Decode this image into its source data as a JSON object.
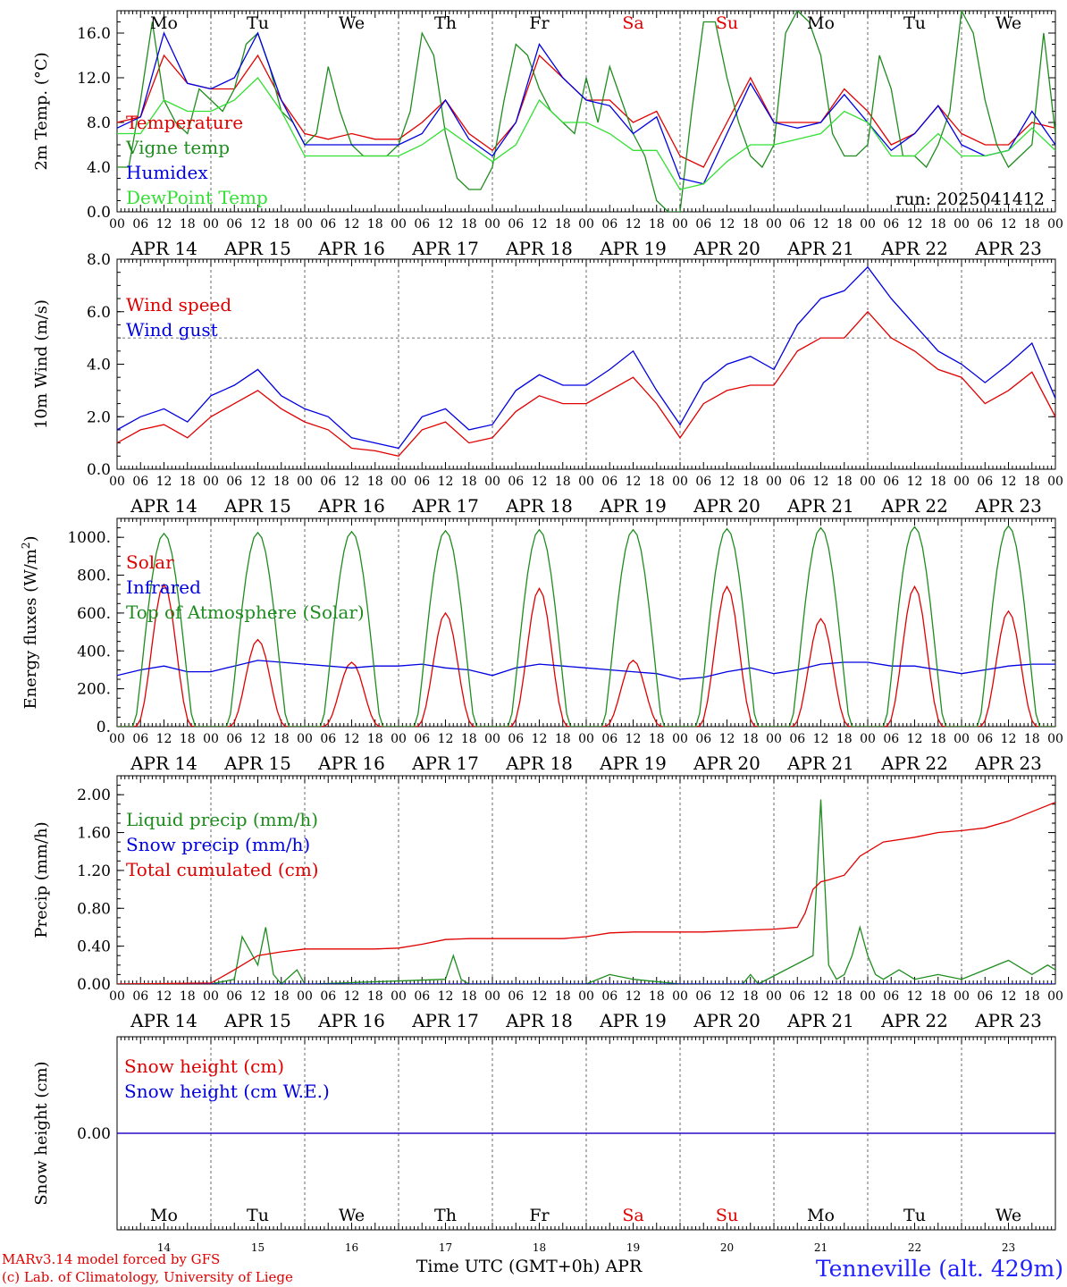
{
  "days": [
    "APR 14",
    "APR 15",
    "APR 16",
    "APR 17",
    "APR 18",
    "APR 19",
    "APR 20",
    "APR 21",
    "APR 22",
    "APR 23"
  ],
  "hour_ticks": [
    "00",
    "06",
    "12",
    "18"
  ],
  "hour_end": "00",
  "weekdays": [
    "Mo",
    "Tu",
    "We",
    "Th",
    "Fr",
    "Sa",
    "Su",
    "Mo",
    "Tu",
    "We"
  ],
  "weekday_colors": [
    "#000000",
    "#000000",
    "#000000",
    "#000000",
    "#000000",
    "#e00000",
    "#e00000",
    "#000000",
    "#000000",
    "#000000"
  ],
  "day_numbers": [
    "14",
    "15",
    "16",
    "17",
    "18",
    "19",
    "20",
    "21",
    "22",
    "23"
  ],
  "x_title": "Time UTC (GMT+0h) APR",
  "footer": {
    "line1": "MARv3.14 model forced by GFS",
    "line2": "(c) Lab. of Climatology, University of Liege",
    "station": "Tenneville (alt. 429m)"
  },
  "chart_data": [
    {
      "type": "line",
      "ylabel": "2m Temp. (°C)",
      "ylim": [
        0,
        18
      ],
      "yticks": [
        "0.0",
        "4.0",
        "8.0",
        "12.0",
        "16.0"
      ],
      "annotation": "run: 2025041412",
      "series": [
        {
          "name": "Temperature",
          "color": "#e00000",
          "x": [
            0,
            6,
            12,
            18,
            24,
            30,
            36,
            42,
            48,
            54,
            60,
            66,
            72,
            78,
            84,
            90,
            96,
            102,
            108,
            114,
            120,
            126,
            132,
            138,
            144,
            150,
            156,
            162,
            168,
            174,
            180,
            186,
            192,
            198,
            204,
            210,
            216,
            222,
            228,
            234,
            240
          ],
          "values": [
            8,
            8.5,
            14,
            11.5,
            11,
            11,
            14,
            10,
            7,
            6.5,
            7,
            6.5,
            6.5,
            8,
            10,
            7,
            5.5,
            8,
            14,
            12,
            10,
            10,
            8,
            9,
            5,
            4,
            8,
            12,
            8,
            8,
            8,
            11,
            9,
            6,
            7,
            9.5,
            7,
            6,
            6,
            8,
            7.5
          ]
        },
        {
          "name": "Vigne temp",
          "color": "#1e8c1e",
          "x": [
            0,
            3,
            6,
            9,
            12,
            15,
            18,
            21,
            24,
            27,
            30,
            33,
            36,
            39,
            42,
            45,
            48,
            51,
            54,
            57,
            60,
            63,
            66,
            69,
            72,
            75,
            78,
            81,
            84,
            87,
            90,
            93,
            96,
            99,
            102,
            105,
            108,
            111,
            114,
            117,
            120,
            123,
            126,
            129,
            132,
            135,
            138,
            141,
            144,
            147,
            150,
            153,
            156,
            159,
            162,
            165,
            168,
            171,
            174,
            177,
            180,
            183,
            186,
            189,
            192,
            195,
            198,
            201,
            204,
            207,
            210,
            213,
            216,
            219,
            222,
            225,
            228,
            231,
            234,
            237,
            240
          ],
          "values": [
            4,
            4,
            10,
            17,
            10,
            8,
            7,
            11,
            10,
            9,
            11,
            15,
            16,
            13,
            9,
            8,
            6,
            7,
            13,
            9,
            6,
            5,
            5,
            5,
            6,
            9,
            16,
            14,
            7,
            3,
            2,
            2,
            4,
            10,
            15,
            14,
            11,
            9,
            8,
            7,
            12,
            8,
            13,
            10,
            7,
            5,
            1,
            0,
            0,
            9,
            17,
            17,
            12,
            8,
            5,
            4,
            6,
            16,
            18,
            17,
            14,
            7,
            5,
            5,
            6,
            14,
            11,
            5,
            5,
            4,
            6,
            9,
            18,
            16,
            10,
            6,
            4,
            5,
            6,
            16,
            7
          ]
        },
        {
          "name": "Humidex",
          "color": "#0000e0",
          "x": [
            0,
            6,
            12,
            18,
            24,
            30,
            36,
            42,
            48,
            54,
            60,
            66,
            72,
            78,
            84,
            90,
            96,
            102,
            108,
            114,
            120,
            126,
            132,
            138,
            144,
            150,
            156,
            162,
            168,
            174,
            180,
            186,
            192,
            198,
            204,
            210,
            216,
            222,
            228,
            234,
            240
          ],
          "values": [
            7.5,
            8.5,
            16,
            11.5,
            11,
            12,
            16,
            10,
            6,
            6,
            6,
            6,
            6,
            7,
            10,
            6.5,
            5,
            8,
            15,
            12,
            10,
            9.5,
            7,
            8.5,
            3,
            2.5,
            7,
            11.5,
            8,
            7.5,
            8,
            10.5,
            8,
            5.5,
            7,
            9.5,
            6,
            5,
            5.5,
            9,
            6
          ]
        },
        {
          "name": "DewPoint Temp",
          "color": "#33e033",
          "x": [
            0,
            6,
            12,
            18,
            24,
            30,
            36,
            42,
            48,
            54,
            60,
            66,
            72,
            78,
            84,
            90,
            96,
            102,
            108,
            114,
            120,
            126,
            132,
            138,
            144,
            150,
            156,
            162,
            168,
            174,
            180,
            186,
            192,
            198,
            204,
            210,
            216,
            222,
            228,
            234,
            240
          ],
          "values": [
            7,
            7,
            10,
            9,
            9,
            10,
            12,
            9,
            5,
            5,
            5,
            5,
            5,
            6,
            7.5,
            6,
            4.5,
            6,
            10,
            8,
            8,
            7,
            5.5,
            5.5,
            2,
            2.5,
            4.5,
            6,
            6,
            6.5,
            7,
            9,
            8,
            5,
            5,
            7,
            5,
            5,
            5.5,
            7.5,
            5.5
          ]
        }
      ]
    },
    {
      "type": "line",
      "ylabel": "10m Wind (m/s)",
      "ylim": [
        0,
        8
      ],
      "yticks": [
        "0.0",
        "2.0",
        "4.0",
        "6.0",
        "8.0"
      ],
      "reference_line": 5,
      "series": [
        {
          "name": "Wind speed",
          "color": "#e00000",
          "x": [
            0,
            6,
            12,
            18,
            24,
            30,
            36,
            42,
            48,
            54,
            60,
            66,
            72,
            78,
            84,
            90,
            96,
            102,
            108,
            114,
            120,
            126,
            132,
            138,
            144,
            150,
            156,
            162,
            168,
            174,
            180,
            186,
            192,
            198,
            204,
            210,
            216,
            222,
            228,
            234,
            240
          ],
          "values": [
            1,
            1.5,
            1.7,
            1.2,
            2,
            2.5,
            3,
            2.3,
            1.8,
            1.5,
            0.8,
            0.7,
            0.5,
            1.5,
            1.8,
            1,
            1.2,
            2.2,
            2.8,
            2.5,
            2.5,
            3,
            3.5,
            2.5,
            1.2,
            2.5,
            3,
            3.2,
            3.2,
            4.5,
            5,
            5,
            6,
            5,
            4.5,
            3.8,
            3.5,
            2.5,
            3,
            3.7,
            2
          ]
        },
        {
          "name": "Wind gust",
          "color": "#0000e0",
          "x": [
            0,
            6,
            12,
            18,
            24,
            30,
            36,
            42,
            48,
            54,
            60,
            66,
            72,
            78,
            84,
            90,
            96,
            102,
            108,
            114,
            120,
            126,
            132,
            138,
            144,
            150,
            156,
            162,
            168,
            174,
            180,
            186,
            192,
            198,
            204,
            210,
            216,
            222,
            228,
            234,
            240
          ],
          "values": [
            1.5,
            2,
            2.3,
            1.8,
            2.8,
            3.2,
            3.8,
            2.8,
            2.3,
            2,
            1.2,
            1,
            0.8,
            2,
            2.3,
            1.5,
            1.7,
            3,
            3.6,
            3.2,
            3.2,
            3.8,
            4.5,
            3,
            1.7,
            3.3,
            4,
            4.3,
            3.8,
            5.5,
            6.5,
            6.8,
            7.7,
            6.5,
            5.5,
            4.5,
            4,
            3.3,
            4,
            4.8,
            2.7
          ]
        }
      ]
    },
    {
      "type": "line",
      "ylabel": "Energy fluxes (W/m²)",
      "ylim": [
        0,
        1100
      ],
      "yticks": [
        "0.",
        "200.",
        "400.",
        "600.",
        "800.",
        "1000."
      ],
      "series": [
        {
          "name": "Solar",
          "color": "#e00000",
          "peaks": [
            [
              12,
              750
            ],
            [
              36,
              460
            ],
            [
              60,
              340
            ],
            [
              84,
              600
            ],
            [
              108,
              730
            ],
            [
              132,
              350
            ],
            [
              156,
              740
            ],
            [
              180,
              570
            ],
            [
              204,
              740
            ],
            [
              228,
              610
            ]
          ]
        },
        {
          "name": "Infrared",
          "color": "#0000e0",
          "x": [
            0,
            6,
            12,
            18,
            24,
            30,
            36,
            42,
            48,
            54,
            60,
            66,
            72,
            78,
            84,
            90,
            96,
            102,
            108,
            114,
            120,
            126,
            132,
            138,
            144,
            150,
            156,
            162,
            168,
            174,
            180,
            186,
            192,
            198,
            204,
            210,
            216,
            222,
            228,
            234,
            240
          ],
          "values": [
            270,
            300,
            320,
            290,
            290,
            320,
            350,
            340,
            330,
            320,
            310,
            320,
            320,
            330,
            310,
            300,
            270,
            310,
            330,
            320,
            310,
            300,
            290,
            280,
            250,
            260,
            290,
            310,
            280,
            300,
            330,
            340,
            340,
            320,
            320,
            300,
            280,
            300,
            320,
            330,
            330
          ]
        },
        {
          "name": "Top of Atmosphere (Solar)",
          "color": "#1e8c1e",
          "peaks": [
            [
              12,
              1020
            ],
            [
              36,
              1025
            ],
            [
              60,
              1030
            ],
            [
              84,
              1035
            ],
            [
              108,
              1040
            ],
            [
              132,
              1040
            ],
            [
              156,
              1045
            ],
            [
              180,
              1050
            ],
            [
              204,
              1055
            ],
            [
              228,
              1060
            ]
          ]
        }
      ]
    },
    {
      "type": "line",
      "ylabel": "Precip (mm/h)",
      "ylim": [
        0,
        2.2
      ],
      "yticks": [
        "0.00",
        "0.40",
        "0.80",
        "1.20",
        "1.60",
        "2.00"
      ],
      "series": [
        {
          "name": "Liquid precip (mm/h)",
          "color": "#1e8c1e",
          "x": [
            0,
            24,
            30,
            32,
            34,
            36,
            38,
            40,
            42,
            46,
            48,
            50,
            84,
            86,
            88,
            90,
            96,
            120,
            126,
            132,
            144,
            160,
            162,
            164,
            178,
            180,
            182,
            184,
            186,
            188,
            190,
            192,
            194,
            196,
            198,
            200,
            204,
            210,
            216,
            222,
            228,
            234,
            238,
            240
          ],
          "values": [
            0,
            0,
            0.05,
            0.5,
            0.35,
            0.2,
            0.6,
            0.1,
            0,
            0.15,
            0,
            0,
            0.05,
            0.3,
            0.05,
            0,
            0,
            0,
            0.1,
            0.05,
            0,
            0,
            0.1,
            0,
            0.3,
            1.95,
            0.2,
            0.05,
            0.1,
            0.3,
            0.6,
            0.3,
            0.1,
            0.05,
            0.1,
            0.15,
            0.05,
            0.1,
            0.05,
            0.15,
            0.25,
            0.1,
            0.2,
            0.15
          ]
        },
        {
          "name": "Snow precip (mm/h)",
          "color": "#0000e0",
          "x": [
            0,
            240
          ],
          "values": [
            0,
            0
          ]
        },
        {
          "name": "Total cumulated (cm)",
          "color": "#e00000",
          "x": [
            0,
            24,
            30,
            36,
            42,
            48,
            54,
            60,
            66,
            72,
            78,
            84,
            90,
            96,
            102,
            108,
            114,
            120,
            126,
            132,
            138,
            144,
            150,
            156,
            162,
            168,
            174,
            176,
            178,
            180,
            182,
            186,
            190,
            196,
            204,
            210,
            216,
            222,
            228,
            234,
            240
          ],
          "values": [
            0,
            0.01,
            0.15,
            0.3,
            0.34,
            0.37,
            0.37,
            0.37,
            0.37,
            0.38,
            0.42,
            0.47,
            0.48,
            0.48,
            0.48,
            0.48,
            0.48,
            0.5,
            0.54,
            0.55,
            0.55,
            0.55,
            0.55,
            0.56,
            0.57,
            0.58,
            0.6,
            0.75,
            1.0,
            1.08,
            1.1,
            1.15,
            1.35,
            1.5,
            1.55,
            1.6,
            1.62,
            1.65,
            1.72,
            1.82,
            1.92
          ]
        }
      ]
    },
    {
      "type": "line",
      "ylabel": "Snow height (cm)",
      "yticks": [
        "0.00"
      ],
      "series": [
        {
          "name": "Snow height (cm)",
          "color": "#e00000",
          "x": [
            0,
            240
          ],
          "values": [
            0,
            0
          ]
        },
        {
          "name": "Snow height (cm W.E.)",
          "color": "#0000e0",
          "x": [
            0,
            240
          ],
          "values": [
            0,
            0
          ]
        }
      ]
    }
  ]
}
